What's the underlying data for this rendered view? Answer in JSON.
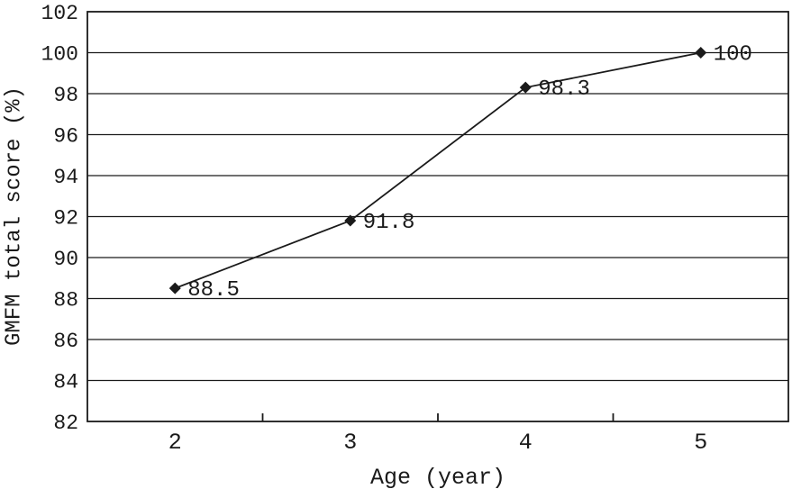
{
  "chart_data": {
    "type": "line",
    "title": "",
    "xlabel": "Age (year)",
    "ylabel": "GMFM total score (%)",
    "x": [
      2,
      3,
      4,
      5
    ],
    "x_tick_labels": [
      "2",
      "3",
      "4",
      "5"
    ],
    "series": [
      {
        "name": "GMFM total score",
        "values": [
          88.5,
          91.8,
          98.3,
          100
        ]
      }
    ],
    "point_labels": [
      "88.5",
      "91.8",
      "98.3",
      "100"
    ],
    "ylim": [
      82,
      102
    ],
    "ytick_step": 2,
    "y_tick_labels": [
      "82",
      "84",
      "86",
      "88",
      "90",
      "92",
      "94",
      "96",
      "98",
      "100",
      "102"
    ],
    "grid": "horizontal",
    "legend": "none",
    "marker": "diamond",
    "line_color": "#1a1a1a",
    "grid_color": "#1a1a1a",
    "background_color": "#ffffff"
  }
}
